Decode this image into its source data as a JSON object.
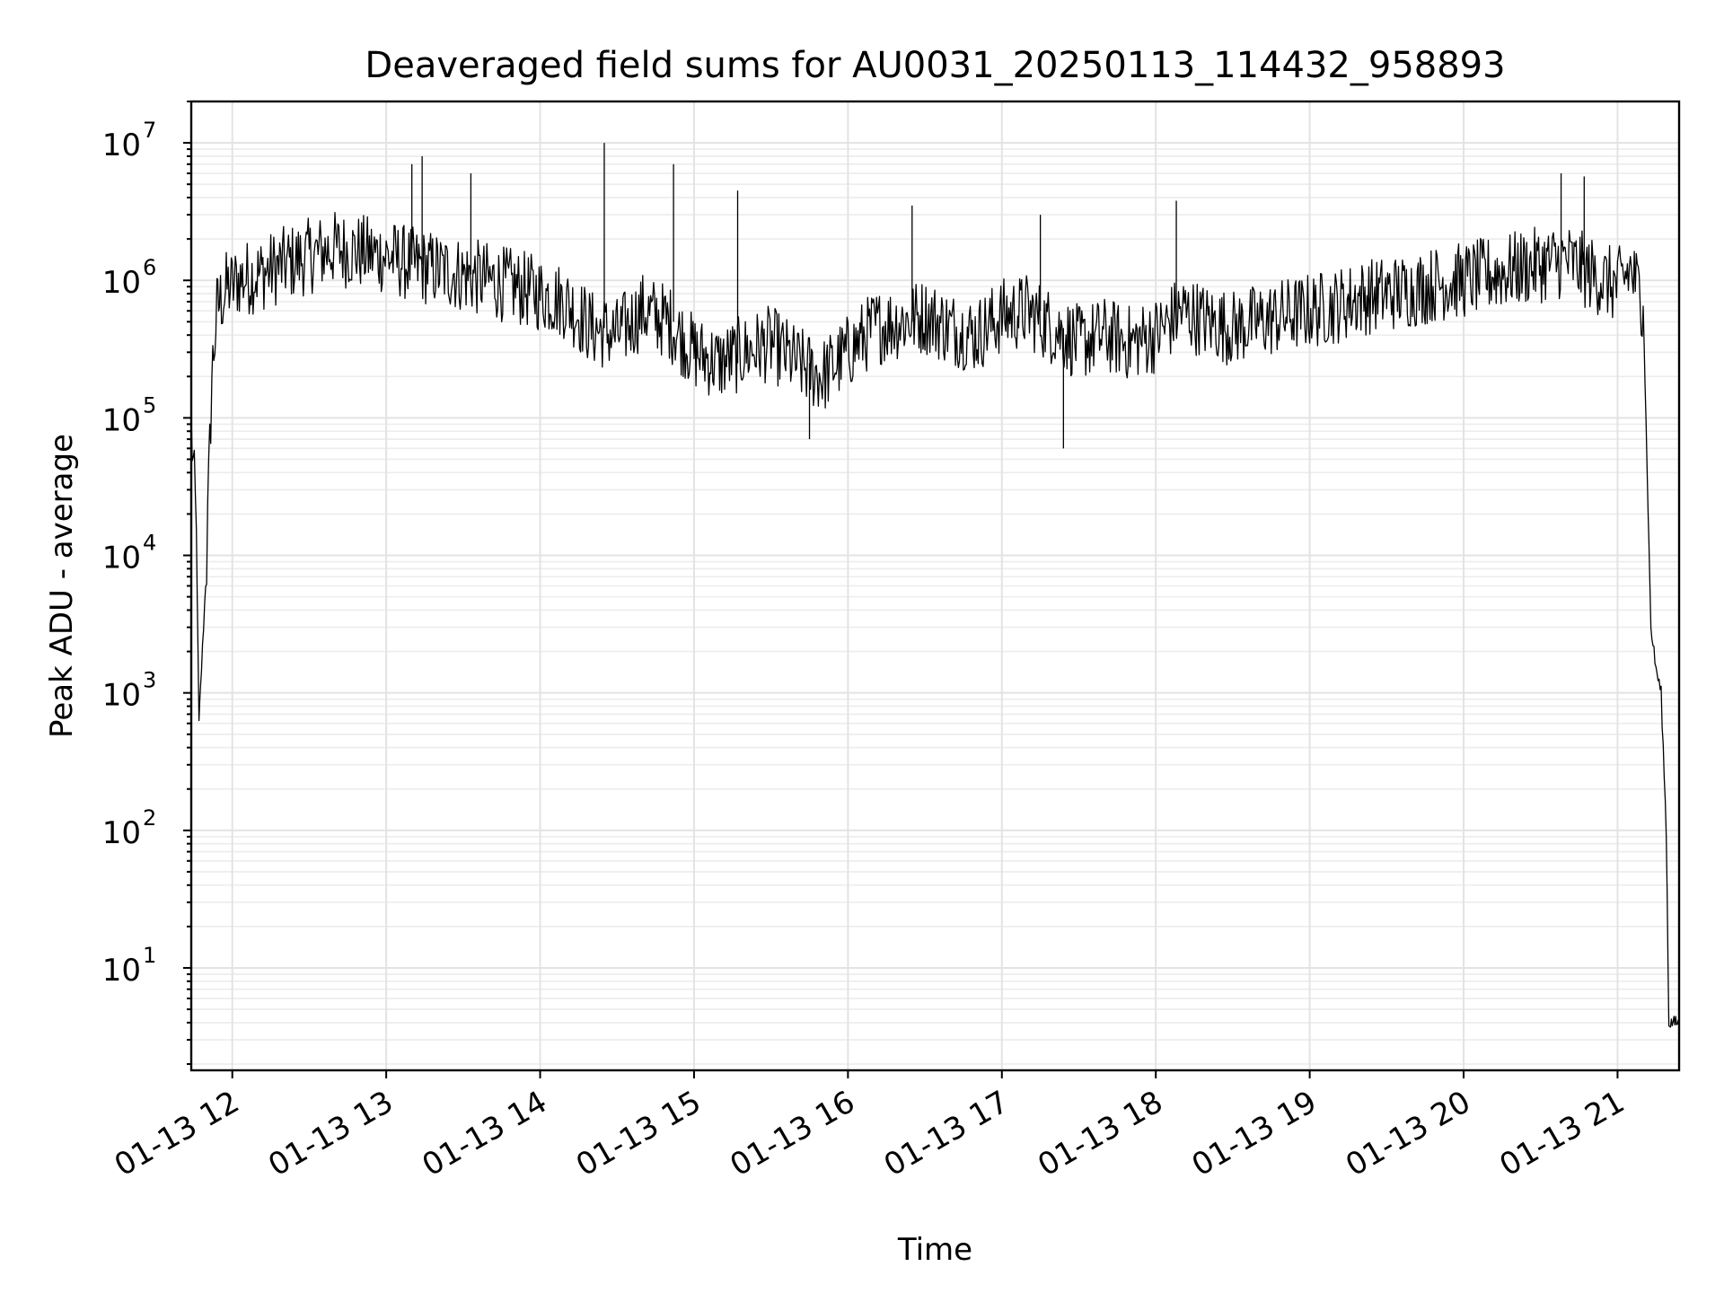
{
  "chart_data": {
    "type": "line",
    "title": "Deaveraged field sums for AU0031_20250113_114432_958893",
    "xlabel": "Time",
    "ylabel": "Peak ADU - average",
    "yscale": "log",
    "xlim": [
      "2025-01-13 11:44",
      "2025-01-13 21:24"
    ],
    "ylim": [
      1.8,
      20000000
    ],
    "grid": true,
    "x_ticks": [
      "01-13 12",
      "01-13 13",
      "01-13 14",
      "01-13 15",
      "01-13 16",
      "01-13 17",
      "01-13 18",
      "01-13 19",
      "01-13 20",
      "01-13 21"
    ],
    "y_ticks": [
      {
        "value": 10,
        "base": "10",
        "exp": "1"
      },
      {
        "value": 100,
        "base": "10",
        "exp": "2"
      },
      {
        "value": 1000,
        "base": "10",
        "exp": "3"
      },
      {
        "value": 10000,
        "base": "10",
        "exp": "4"
      },
      {
        "value": 100000,
        "base": "10",
        "exp": "5"
      },
      {
        "value": 1000000,
        "base": "10",
        "exp": "6"
      },
      {
        "value": 10000000,
        "base": "10",
        "exp": "7"
      }
    ],
    "series": [
      {
        "color": "#000000",
        "x": [
          "2025-01-13 11:44",
          "2025-01-13 11:46",
          "2025-01-13 11:47",
          "2025-01-13 11:48",
          "2025-01-13 11:50",
          "2025-01-13 11:52",
          "2025-01-13 11:54",
          "2025-01-13 11:55",
          "2025-01-13 11:57",
          "2025-01-13 11:58",
          "2025-01-13 12:00",
          "2025-01-13 12:02",
          "2025-01-13 12:10",
          "2025-01-13 12:20",
          "2025-01-13 12:30",
          "2025-01-13 12:40",
          "2025-01-13 12:50",
          "2025-01-13 13:00",
          "2025-01-13 13:10",
          "2025-01-13 13:20",
          "2025-01-13 13:30",
          "2025-01-13 13:40",
          "2025-01-13 13:50",
          "2025-01-13 14:00",
          "2025-01-13 14:10",
          "2025-01-13 14:20",
          "2025-01-13 14:30",
          "2025-01-13 14:40",
          "2025-01-13 14:50",
          "2025-01-13 15:00",
          "2025-01-13 15:10",
          "2025-01-13 15:20",
          "2025-01-13 15:30",
          "2025-01-13 15:40",
          "2025-01-13 15:50",
          "2025-01-13 16:00",
          "2025-01-13 16:10",
          "2025-01-13 16:20",
          "2025-01-13 16:30",
          "2025-01-13 16:40",
          "2025-01-13 16:50",
          "2025-01-13 17:00",
          "2025-01-13 17:10",
          "2025-01-13 17:20",
          "2025-01-13 17:30",
          "2025-01-13 17:40",
          "2025-01-13 17:50",
          "2025-01-13 18:00",
          "2025-01-13 18:10",
          "2025-01-13 18:20",
          "2025-01-13 18:30",
          "2025-01-13 18:40",
          "2025-01-13 18:50",
          "2025-01-13 19:00",
          "2025-01-13 19:10",
          "2025-01-13 19:20",
          "2025-01-13 19:30",
          "2025-01-13 19:40",
          "2025-01-13 19:50",
          "2025-01-13 20:00",
          "2025-01-13 20:10",
          "2025-01-13 20:20",
          "2025-01-13 20:30",
          "2025-01-13 20:40",
          "2025-01-13 20:50",
          "2025-01-13 21:00",
          "2025-01-13 21:05",
          "2025-01-13 21:10",
          "2025-01-13 21:13",
          "2025-01-13 21:15",
          "2025-01-13 21:17",
          "2025-01-13 21:19",
          "2025-01-13 21:20",
          "2025-01-13 21:21",
          "2025-01-13 21:22",
          "2025-01-13 21:23",
          "2025-01-13 21:24"
        ],
        "y": [
          90000,
          15000,
          600,
          1500,
          9000,
          200000,
          600000,
          700000,
          800000,
          900000,
          900000,
          1000000,
          1100000,
          1300000,
          1500000,
          1700000,
          1600000,
          1500000,
          1300000,
          1200000,
          1100000,
          1000000,
          900000,
          800000,
          700000,
          450000,
          400000,
          600000,
          500000,
          300000,
          250000,
          300000,
          350000,
          250000,
          200000,
          300000,
          450000,
          500000,
          550000,
          450000,
          400000,
          550000,
          600000,
          450000,
          350000,
          400000,
          350000,
          400000,
          600000,
          500000,
          450000,
          500000,
          550000,
          600000,
          650000,
          750000,
          800000,
          850000,
          950000,
          1000000,
          1100000,
          1200000,
          1300000,
          1400000,
          1100000,
          900000,
          1200000,
          700000,
          3000,
          1500,
          1000,
          100,
          4,
          4,
          4,
          4,
          4
        ],
        "spikes": [
          {
            "x": "2025-01-13 13:10",
            "y": 7000000
          },
          {
            "x": "2025-01-13 13:14",
            "y": 8000000
          },
          {
            "x": "2025-01-13 13:33",
            "y": 6000000
          },
          {
            "x": "2025-01-13 14:25",
            "y": 10000000
          },
          {
            "x": "2025-01-13 14:52",
            "y": 7000000
          },
          {
            "x": "2025-01-13 15:17",
            "y": 4500000
          },
          {
            "x": "2025-01-13 16:25",
            "y": 3500000
          },
          {
            "x": "2025-01-13 17:15",
            "y": 3000000
          },
          {
            "x": "2025-01-13 18:08",
            "y": 3800000
          },
          {
            "x": "2025-01-13 20:38",
            "y": 6000000
          },
          {
            "x": "2025-01-13 20:47",
            "y": 5700000
          },
          {
            "x": "2025-01-13 17:24",
            "y": 60000
          },
          {
            "x": "2025-01-13 15:45",
            "y": 70000
          }
        ]
      }
    ]
  }
}
